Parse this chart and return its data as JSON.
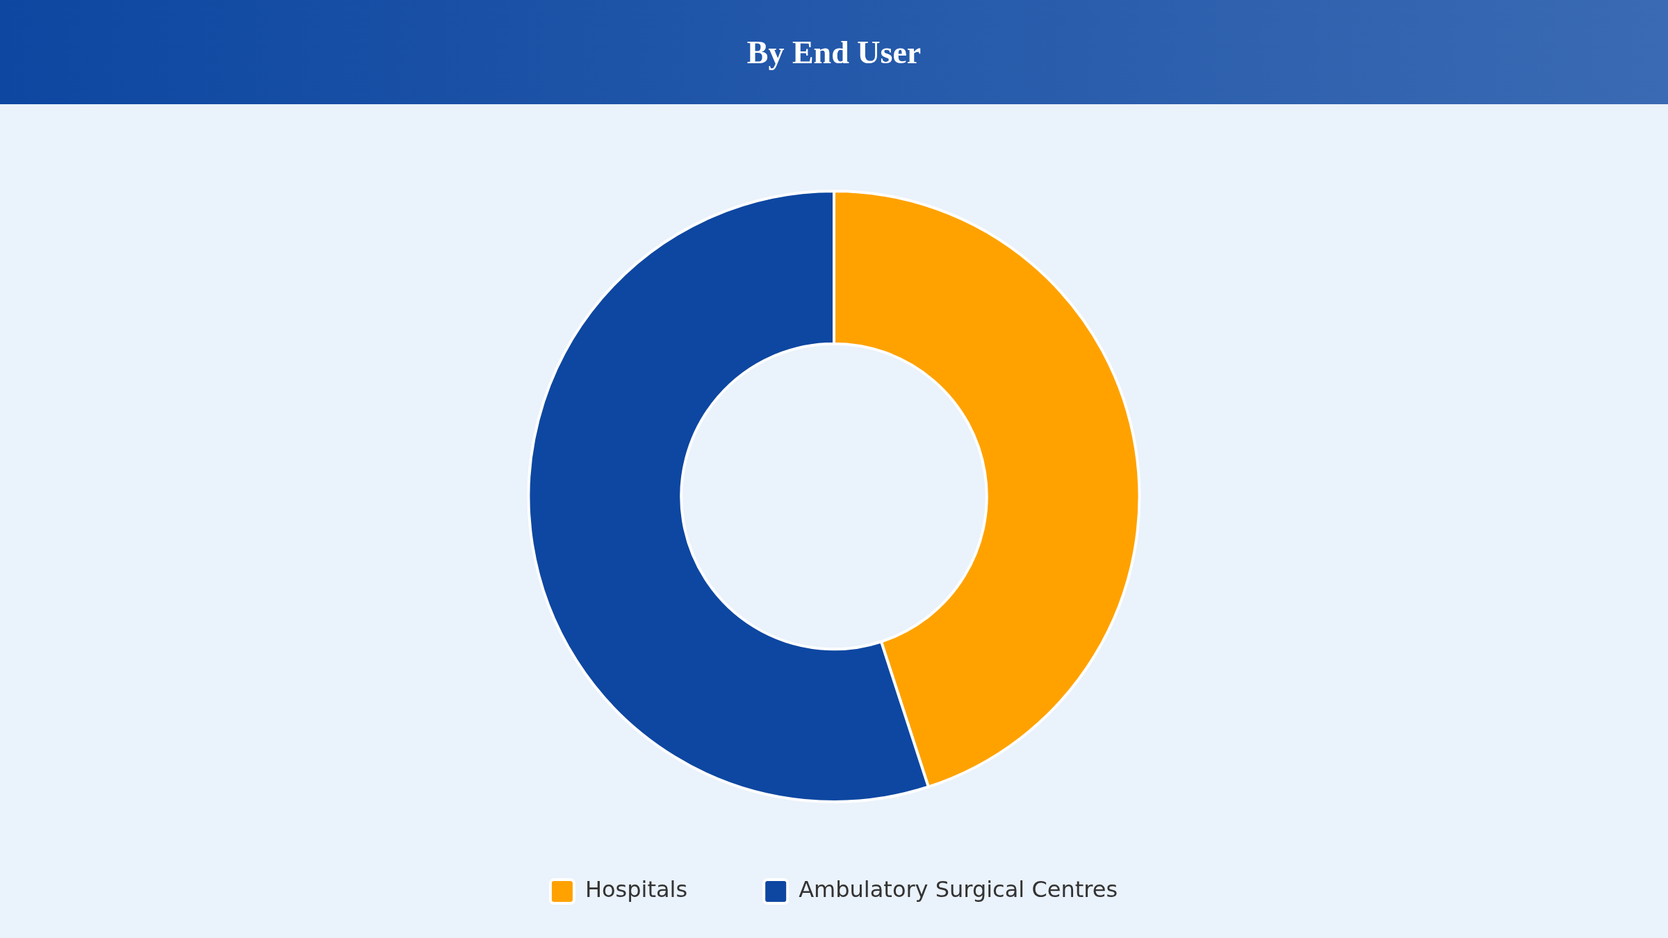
{
  "chart_data": {
    "type": "donut",
    "title": "By End User",
    "categories": [
      "Hospitals",
      "Ambulatory Surgical Centres"
    ],
    "values": [
      45,
      55
    ],
    "colors": [
      "#ffa200",
      "#0d47a1"
    ],
    "legend": "bottom"
  }
}
